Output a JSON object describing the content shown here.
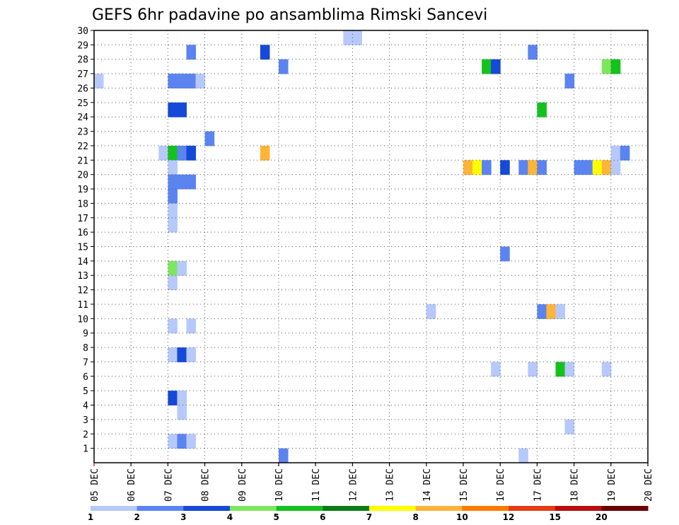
{
  "chart_data": {
    "type": "heatmap",
    "title": "GEFS 6hr padavine po ansamblima Rimski Sancevi",
    "x_tick_labels": [
      "05 DEC",
      "06 DEC",
      "07 DEC",
      "08 DEC",
      "09 DEC",
      "10 DEC",
      "11 DEC",
      "12 DEC",
      "13 DEC",
      "14 DEC",
      "15 DEC",
      "16 DEC",
      "17 DEC",
      "18 DEC",
      "19 DEC",
      "20 DEC"
    ],
    "x_range_days": [
      0,
      15
    ],
    "step_hours": 6,
    "y_tick_labels": [
      "1",
      "2",
      "3",
      "4",
      "5",
      "6",
      "7",
      "8",
      "9",
      "10",
      "11",
      "12",
      "13",
      "14",
      "15",
      "16",
      "17",
      "18",
      "19",
      "20",
      "21",
      "22",
      "23",
      "24",
      "25",
      "26",
      "27",
      "28",
      "29",
      "30"
    ],
    "y_range": [
      0,
      30
    ],
    "grid": true,
    "colorbar": {
      "labels": [
        "1",
        "2",
        "3",
        "4",
        "5",
        "6",
        "7",
        "8",
        "10",
        "12",
        "15",
        "20"
      ],
      "colors": [
        "#b7c9fb",
        "#5b84f0",
        "#1549d8",
        "#7ee65e",
        "#14c21e",
        "#0b7c16",
        "#ffff00",
        "#ffb43a",
        "#ff7a00",
        "#e63a12",
        "#b80e10",
        "#6a0000"
      ]
    },
    "cells": [
      {
        "member": 29,
        "step": 27,
        "value": 1
      },
      {
        "member": 29,
        "step": 28,
        "value": 1
      },
      {
        "member": 28,
        "step": 10,
        "value": 2
      },
      {
        "member": 28,
        "step": 18,
        "value": 3
      },
      {
        "member": 28,
        "step": 47,
        "value": 2
      },
      {
        "member": 27,
        "step": 20,
        "value": 2
      },
      {
        "member": 27,
        "step": 42,
        "value": 5
      },
      {
        "member": 27,
        "step": 43,
        "value": 3
      },
      {
        "member": 27,
        "step": 55,
        "value": 4
      },
      {
        "member": 27,
        "step": 56,
        "value": 5
      },
      {
        "member": 26,
        "step": 0,
        "value": 1
      },
      {
        "member": 26,
        "step": 8,
        "value": 2
      },
      {
        "member": 26,
        "step": 9,
        "value": 2
      },
      {
        "member": 26,
        "step": 10,
        "value": 2
      },
      {
        "member": 26,
        "step": 11,
        "value": 1
      },
      {
        "member": 26,
        "step": 51,
        "value": 2
      },
      {
        "member": 24,
        "step": 8,
        "value": 3
      },
      {
        "member": 24,
        "step": 9,
        "value": 3
      },
      {
        "member": 24,
        "step": 48,
        "value": 5
      },
      {
        "member": 22,
        "step": 12,
        "value": 2
      },
      {
        "member": 21,
        "step": 7,
        "value": 1
      },
      {
        "member": 21,
        "step": 8,
        "value": 5
      },
      {
        "member": 21,
        "step": 9,
        "value": 2
      },
      {
        "member": 21,
        "step": 10,
        "value": 3
      },
      {
        "member": 21,
        "step": 18,
        "value": 9
      },
      {
        "member": 21,
        "step": 56,
        "value": 1
      },
      {
        "member": 21,
        "step": 57,
        "value": 2
      },
      {
        "member": 20,
        "step": 8,
        "value": 1
      },
      {
        "member": 20,
        "step": 40,
        "value": 8
      },
      {
        "member": 20,
        "step": 41,
        "value": 7
      },
      {
        "member": 20,
        "step": 42,
        "value": 2
      },
      {
        "member": 20,
        "step": 44,
        "value": 3
      },
      {
        "member": 20,
        "step": 46,
        "value": 2
      },
      {
        "member": 20,
        "step": 47,
        "value": 8
      },
      {
        "member": 20,
        "step": 48,
        "value": 2
      },
      {
        "member": 20,
        "step": 52,
        "value": 2
      },
      {
        "member": 20,
        "step": 53,
        "value": 2
      },
      {
        "member": 20,
        "step": 54,
        "value": 7
      },
      {
        "member": 20,
        "step": 55,
        "value": 8
      },
      {
        "member": 20,
        "step": 56,
        "value": 1
      },
      {
        "member": 19,
        "step": 8,
        "value": 2
      },
      {
        "member": 19,
        "step": 9,
        "value": 2
      },
      {
        "member": 19,
        "step": 10,
        "value": 2
      },
      {
        "member": 18,
        "step": 8,
        "value": 2
      },
      {
        "member": 17,
        "step": 8,
        "value": 1
      },
      {
        "member": 16,
        "step": 8,
        "value": 1
      },
      {
        "member": 14,
        "step": 44,
        "value": 2
      },
      {
        "member": 13,
        "step": 8,
        "value": 4
      },
      {
        "member": 13,
        "step": 9,
        "value": 1
      },
      {
        "member": 12,
        "step": 8,
        "value": 1
      },
      {
        "member": 10,
        "step": 36,
        "value": 1
      },
      {
        "member": 10,
        "step": 48,
        "value": 2
      },
      {
        "member": 10,
        "step": 49,
        "value": 8
      },
      {
        "member": 10,
        "step": 50,
        "value": 1
      },
      {
        "member": 9,
        "step": 8,
        "value": 1
      },
      {
        "member": 9,
        "step": 10,
        "value": 1
      },
      {
        "member": 7,
        "step": 8,
        "value": 1
      },
      {
        "member": 7,
        "step": 9,
        "value": 3
      },
      {
        "member": 7,
        "step": 10,
        "value": 1
      },
      {
        "member": 6,
        "step": 43,
        "value": 1
      },
      {
        "member": 6,
        "step": 47,
        "value": 1
      },
      {
        "member": 6,
        "step": 50,
        "value": 5
      },
      {
        "member": 6,
        "step": 51,
        "value": 1
      },
      {
        "member": 6,
        "step": 55,
        "value": 1
      },
      {
        "member": 4,
        "step": 8,
        "value": 3
      },
      {
        "member": 4,
        "step": 9,
        "value": 1
      },
      {
        "member": 3,
        "step": 9,
        "value": 1
      },
      {
        "member": 2,
        "step": 51,
        "value": 1
      },
      {
        "member": 1,
        "step": 8,
        "value": 1
      },
      {
        "member": 1,
        "step": 9,
        "value": 2
      },
      {
        "member": 1,
        "step": 10,
        "value": 1
      },
      {
        "member": 0,
        "step": 20,
        "value": 2
      },
      {
        "member": 0,
        "step": 46,
        "value": 1
      }
    ]
  }
}
